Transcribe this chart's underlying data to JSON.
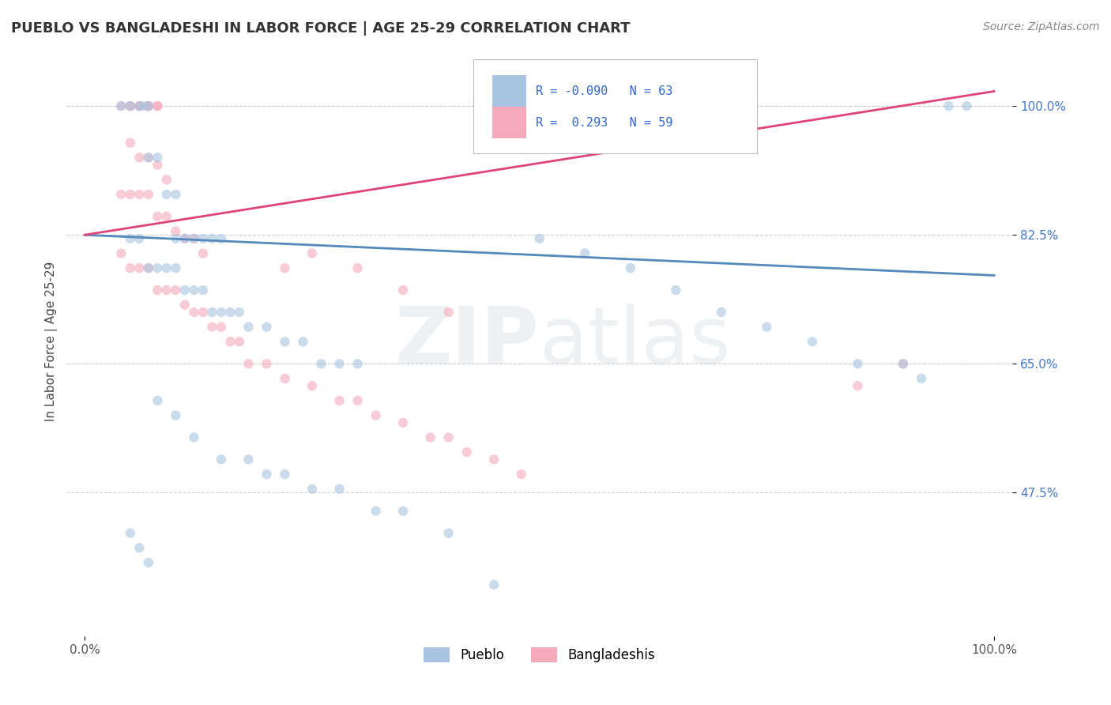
{
  "title": "PUEBLO VS BANGLADESHI IN LABOR FORCE | AGE 25-29 CORRELATION CHART",
  "source_text": "Source: ZipAtlas.com",
  "ylabel": "In Labor Force | Age 25-29",
  "xlim": [
    -0.02,
    1.02
  ],
  "ylim": [
    0.28,
    1.08
  ],
  "ytick_positions": [
    0.475,
    0.65,
    0.825,
    1.0
  ],
  "ytick_labels": [
    "47.5%",
    "65.0%",
    "82.5%",
    "100.0%"
  ],
  "xtick_positions": [
    0.0,
    1.0
  ],
  "xtick_labels": [
    "0.0%",
    "100.0%"
  ],
  "blue_color": "#A8C4E0",
  "pink_color": "#F4AABB",
  "blue_line_color": "#5588BB",
  "pink_line_color": "#DD4477",
  "legend_blue_label": "Pueblo",
  "legend_pink_label": "Bangladeshis",
  "R_blue": "-0.090",
  "N_blue": "63",
  "R_pink": "0.293",
  "N_pink": "59",
  "watermark_zip": "ZIP",
  "watermark_atlas": "atlas",
  "blue_scatter": [
    [
      0.04,
      1.0
    ],
    [
      0.05,
      1.0
    ],
    [
      0.06,
      1.0
    ],
    [
      0.065,
      1.0
    ],
    [
      0.07,
      1.0
    ],
    [
      0.07,
      0.93
    ],
    [
      0.08,
      0.93
    ],
    [
      0.09,
      0.88
    ],
    [
      0.1,
      0.88
    ],
    [
      0.1,
      0.82
    ],
    [
      0.11,
      0.82
    ],
    [
      0.12,
      0.82
    ],
    [
      0.13,
      0.82
    ],
    [
      0.14,
      0.82
    ],
    [
      0.15,
      0.82
    ],
    [
      0.05,
      0.82
    ],
    [
      0.06,
      0.82
    ],
    [
      0.07,
      0.78
    ],
    [
      0.08,
      0.78
    ],
    [
      0.09,
      0.78
    ],
    [
      0.1,
      0.78
    ],
    [
      0.11,
      0.75
    ],
    [
      0.12,
      0.75
    ],
    [
      0.13,
      0.75
    ],
    [
      0.14,
      0.72
    ],
    [
      0.15,
      0.72
    ],
    [
      0.16,
      0.72
    ],
    [
      0.17,
      0.72
    ],
    [
      0.18,
      0.7
    ],
    [
      0.2,
      0.7
    ],
    [
      0.22,
      0.68
    ],
    [
      0.24,
      0.68
    ],
    [
      0.26,
      0.65
    ],
    [
      0.28,
      0.65
    ],
    [
      0.3,
      0.65
    ],
    [
      0.08,
      0.6
    ],
    [
      0.1,
      0.58
    ],
    [
      0.12,
      0.55
    ],
    [
      0.15,
      0.52
    ],
    [
      0.18,
      0.52
    ],
    [
      0.2,
      0.5
    ],
    [
      0.22,
      0.5
    ],
    [
      0.25,
      0.48
    ],
    [
      0.28,
      0.48
    ],
    [
      0.32,
      0.45
    ],
    [
      0.35,
      0.45
    ],
    [
      0.4,
      0.42
    ],
    [
      0.05,
      0.42
    ],
    [
      0.06,
      0.4
    ],
    [
      0.07,
      0.38
    ],
    [
      0.5,
      0.82
    ],
    [
      0.55,
      0.8
    ],
    [
      0.6,
      0.78
    ],
    [
      0.65,
      0.75
    ],
    [
      0.7,
      0.72
    ],
    [
      0.75,
      0.7
    ],
    [
      0.8,
      0.68
    ],
    [
      0.85,
      0.65
    ],
    [
      0.9,
      0.65
    ],
    [
      0.92,
      0.63
    ],
    [
      0.95,
      1.0
    ],
    [
      0.97,
      1.0
    ],
    [
      0.45,
      0.35
    ]
  ],
  "pink_scatter": [
    [
      0.04,
      1.0
    ],
    [
      0.05,
      1.0
    ],
    [
      0.05,
      1.0
    ],
    [
      0.06,
      1.0
    ],
    [
      0.06,
      1.0
    ],
    [
      0.07,
      1.0
    ],
    [
      0.07,
      1.0
    ],
    [
      0.07,
      1.0
    ],
    [
      0.08,
      1.0
    ],
    [
      0.08,
      1.0
    ],
    [
      0.05,
      0.95
    ],
    [
      0.06,
      0.93
    ],
    [
      0.07,
      0.93
    ],
    [
      0.08,
      0.92
    ],
    [
      0.09,
      0.9
    ],
    [
      0.04,
      0.88
    ],
    [
      0.05,
      0.88
    ],
    [
      0.06,
      0.88
    ],
    [
      0.07,
      0.88
    ],
    [
      0.08,
      0.85
    ],
    [
      0.09,
      0.85
    ],
    [
      0.1,
      0.83
    ],
    [
      0.11,
      0.82
    ],
    [
      0.12,
      0.82
    ],
    [
      0.13,
      0.8
    ],
    [
      0.04,
      0.8
    ],
    [
      0.05,
      0.78
    ],
    [
      0.06,
      0.78
    ],
    [
      0.07,
      0.78
    ],
    [
      0.08,
      0.75
    ],
    [
      0.09,
      0.75
    ],
    [
      0.1,
      0.75
    ],
    [
      0.11,
      0.73
    ],
    [
      0.12,
      0.72
    ],
    [
      0.13,
      0.72
    ],
    [
      0.14,
      0.7
    ],
    [
      0.15,
      0.7
    ],
    [
      0.16,
      0.68
    ],
    [
      0.17,
      0.68
    ],
    [
      0.18,
      0.65
    ],
    [
      0.2,
      0.65
    ],
    [
      0.22,
      0.63
    ],
    [
      0.25,
      0.62
    ],
    [
      0.28,
      0.6
    ],
    [
      0.3,
      0.6
    ],
    [
      0.32,
      0.58
    ],
    [
      0.35,
      0.57
    ],
    [
      0.38,
      0.55
    ],
    [
      0.4,
      0.55
    ],
    [
      0.42,
      0.53
    ],
    [
      0.45,
      0.52
    ],
    [
      0.48,
      0.5
    ],
    [
      0.22,
      0.78
    ],
    [
      0.25,
      0.8
    ],
    [
      0.3,
      0.78
    ],
    [
      0.35,
      0.75
    ],
    [
      0.4,
      0.72
    ],
    [
      0.85,
      0.62
    ],
    [
      0.9,
      0.65
    ]
  ],
  "blue_trend_x": [
    0.0,
    1.0
  ],
  "blue_trend_y": [
    0.825,
    0.77
  ],
  "pink_trend_x": [
    0.0,
    1.0
  ],
  "pink_trend_y": [
    0.825,
    1.02
  ],
  "background_color": "#FFFFFF",
  "grid_color": "#CCCCCC"
}
